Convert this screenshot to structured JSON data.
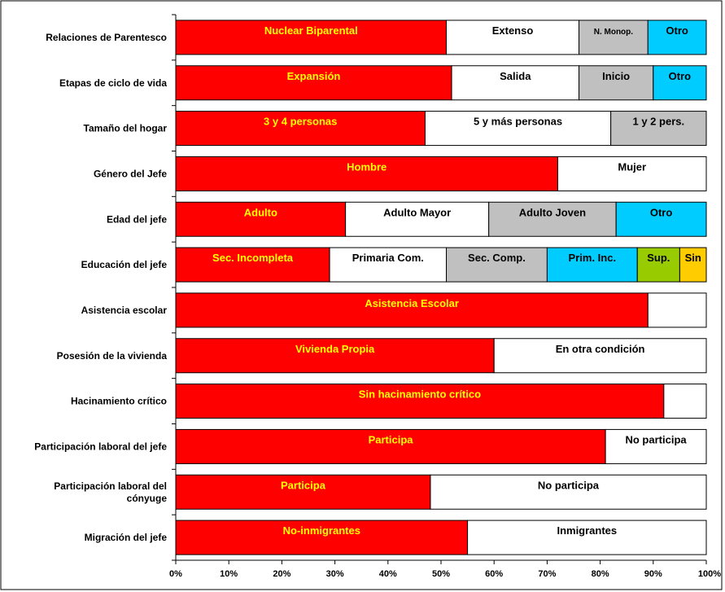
{
  "chart_data": {
    "type": "bar",
    "orientation": "horizontal",
    "stacked": true,
    "percent": true,
    "xlim": [
      0,
      100
    ],
    "x_ticks": [
      "0%",
      "10%",
      "20%",
      "30%",
      "40%",
      "50%",
      "60%",
      "70%",
      "80%",
      "90%",
      "100%"
    ],
    "grid": false,
    "legend": "none",
    "categories": [
      "Relaciones de Parentesco",
      "Etapas de ciclo de vida",
      "Tamaño del hogar",
      "Género del Jefe",
      "Edad del jefe",
      "Educación del jefe",
      "Asistencia escolar",
      "Posesión de la vivienda",
      "Hacinamiento crítico",
      "Participación laboral del jefe",
      "Participación laboral del cónyuge",
      "Migración del jefe"
    ],
    "rows": [
      {
        "segments": [
          {
            "label": "Nuclear Biparental",
            "value": 51,
            "color": "#ff0000",
            "text_color": "#ffff00"
          },
          {
            "label": "Extenso",
            "value": 25,
            "color": "#ffffff",
            "text_color": "#000000"
          },
          {
            "label": "N. Monop.",
            "value": 13,
            "color": "#c0c0c0",
            "text_color": "#000000",
            "small": true
          },
          {
            "label": "Otro",
            "value": 11,
            "color": "#00ccff",
            "text_color": "#000000"
          }
        ]
      },
      {
        "segments": [
          {
            "label": "Expansión",
            "value": 52,
            "color": "#ff0000",
            "text_color": "#ffff00"
          },
          {
            "label": "Salida",
            "value": 24,
            "color": "#ffffff",
            "text_color": "#000000"
          },
          {
            "label": "Inicio",
            "value": 14,
            "color": "#c0c0c0",
            "text_color": "#000000"
          },
          {
            "label": "Otro",
            "value": 10,
            "color": "#00ccff",
            "text_color": "#000000"
          }
        ]
      },
      {
        "segments": [
          {
            "label": "3 y 4 personas",
            "value": 47,
            "color": "#ff0000",
            "text_color": "#ffff00"
          },
          {
            "label": "5 y más personas",
            "value": 35,
            "color": "#ffffff",
            "text_color": "#000000"
          },
          {
            "label": "1 y 2 pers.",
            "value": 18,
            "color": "#c0c0c0",
            "text_color": "#000000"
          }
        ]
      },
      {
        "segments": [
          {
            "label": "Hombre",
            "value": 72,
            "color": "#ff0000",
            "text_color": "#ffff00"
          },
          {
            "label": "Mujer",
            "value": 28,
            "color": "#ffffff",
            "text_color": "#000000"
          }
        ]
      },
      {
        "segments": [
          {
            "label": "Adulto",
            "value": 32,
            "color": "#ff0000",
            "text_color": "#ffff00"
          },
          {
            "label": "Adulto Mayor",
            "value": 27,
            "color": "#ffffff",
            "text_color": "#000000"
          },
          {
            "label": "Adulto Joven",
            "value": 24,
            "color": "#c0c0c0",
            "text_color": "#000000"
          },
          {
            "label": "Otro",
            "value": 17,
            "color": "#00ccff",
            "text_color": "#000000"
          }
        ]
      },
      {
        "segments": [
          {
            "label": "Sec. Incompleta",
            "value": 29,
            "color": "#ff0000",
            "text_color": "#ffff00"
          },
          {
            "label": "Primaria Com.",
            "value": 22,
            "color": "#ffffff",
            "text_color": "#000000"
          },
          {
            "label": "Sec. Comp.",
            "value": 19,
            "color": "#c0c0c0",
            "text_color": "#000000"
          },
          {
            "label": "Prim. Inc.",
            "value": 17,
            "color": "#00ccff",
            "text_color": "#000000"
          },
          {
            "label": "Sup.",
            "value": 8,
            "color": "#99cc00",
            "text_color": "#000000"
          },
          {
            "label": "Sin",
            "value": 5,
            "color": "#ffcc00",
            "text_color": "#000000"
          }
        ]
      },
      {
        "segments": [
          {
            "label": "Asistencia Escolar",
            "value": 89,
            "color": "#ff0000",
            "text_color": "#ffff00"
          },
          {
            "label": "",
            "value": 11,
            "color": "#ffffff",
            "text_color": "#000000"
          }
        ]
      },
      {
        "segments": [
          {
            "label": "Vivienda Propia",
            "value": 60,
            "color": "#ff0000",
            "text_color": "#ffff00"
          },
          {
            "label": "En otra condición",
            "value": 40,
            "color": "#ffffff",
            "text_color": "#000000"
          }
        ]
      },
      {
        "segments": [
          {
            "label": "Sin hacinamiento crítico",
            "value": 92,
            "color": "#ff0000",
            "text_color": "#ffff00"
          },
          {
            "label": "",
            "value": 8,
            "color": "#ffffff",
            "text_color": "#000000"
          }
        ]
      },
      {
        "segments": [
          {
            "label": "Participa",
            "value": 81,
            "color": "#ff0000",
            "text_color": "#ffff00"
          },
          {
            "label": "No participa",
            "value": 19,
            "color": "#ffffff",
            "text_color": "#000000"
          }
        ]
      },
      {
        "segments": [
          {
            "label": "Participa",
            "value": 48,
            "color": "#ff0000",
            "text_color": "#ffff00"
          },
          {
            "label": "No participa",
            "value": 52,
            "color": "#ffffff",
            "text_color": "#000000"
          }
        ]
      },
      {
        "segments": [
          {
            "label": "No-inmigrantes",
            "value": 55,
            "color": "#ff0000",
            "text_color": "#ffff00"
          },
          {
            "label": "Inmigrantes",
            "value": 45,
            "color": "#ffffff",
            "text_color": "#000000"
          }
        ]
      }
    ]
  }
}
